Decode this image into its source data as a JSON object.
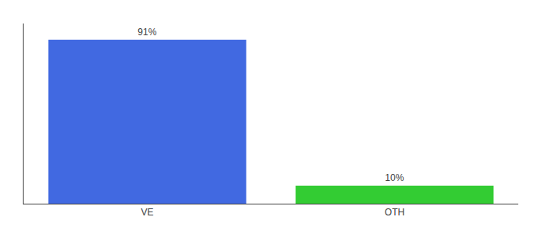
{
  "chart_data": {
    "type": "bar",
    "categories": [
      "VE",
      "OTH"
    ],
    "values": [
      91,
      10
    ],
    "colors": [
      "#4169e1",
      "#33cc33"
    ],
    "data_labels": true,
    "value_labels": [
      "91%",
      "10%"
    ],
    "ylim": [
      0,
      100
    ],
    "grid": false,
    "tick_labels": "x"
  }
}
